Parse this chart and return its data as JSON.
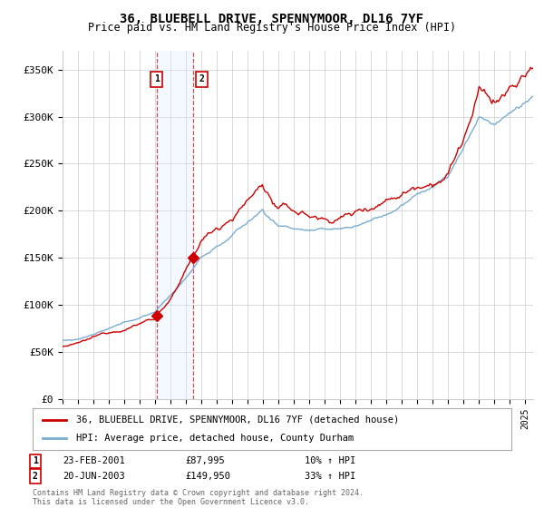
{
  "title": "36, BLUEBELL DRIVE, SPENNYMOOR, DL16 7YF",
  "subtitle": "Price paid vs. HM Land Registry's House Price Index (HPI)",
  "ylabel_ticks": [
    "£0",
    "£50K",
    "£100K",
    "£150K",
    "£200K",
    "£250K",
    "£300K",
    "£350K"
  ],
  "ytick_values": [
    0,
    50000,
    100000,
    150000,
    200000,
    250000,
    300000,
    350000
  ],
  "ylim": [
    0,
    370000
  ],
  "sale1_date": 2001.14,
  "sale1_price": 87995,
  "sale2_date": 2003.47,
  "sale2_price": 149950,
  "sale1_text": "23-FEB-2001",
  "sale1_price_text": "£87,995",
  "sale1_hpi_text": "10% ↑ HPI",
  "sale2_text": "20-JUN-2003",
  "sale2_price_text": "£149,950",
  "sale2_hpi_text": "33% ↑ HPI",
  "legend_line1": "36, BLUEBELL DRIVE, SPENNYMOOR, DL16 7YF (detached house)",
  "legend_line2": "HPI: Average price, detached house, County Durham",
  "footer1": "Contains HM Land Registry data © Crown copyright and database right 2024.",
  "footer2": "This data is licensed under the Open Government Licence v3.0.",
  "red_color": "#cc0000",
  "blue_color": "#7aadcf",
  "shade_color": "#ddeeff",
  "bg_color": "#ffffff",
  "grid_color": "#cccccc"
}
